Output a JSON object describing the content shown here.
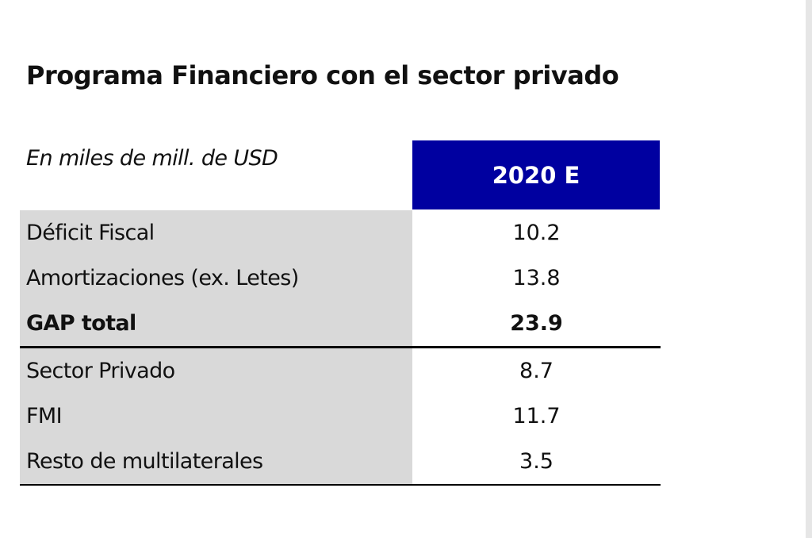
{
  "title": "Programa Financiero con el sector privado",
  "units_label": "En miles de mill. de USD",
  "column_header": "2020 E",
  "colors": {
    "header_background": "#0000a0",
    "label_background": "#d9d9d9"
  },
  "rows": [
    {
      "label": "Déficit Fiscal",
      "value": "10.2"
    },
    {
      "label": "Amortizaciones (ex. Letes)",
      "value": "13.8"
    },
    {
      "label": "GAP total",
      "value": "23.9"
    },
    {
      "label": "Sector Privado",
      "value": "8.7"
    },
    {
      "label": "FMI",
      "value": "11.7"
    },
    {
      "label": "Resto de multilaterales",
      "value": "3.5"
    }
  ]
}
